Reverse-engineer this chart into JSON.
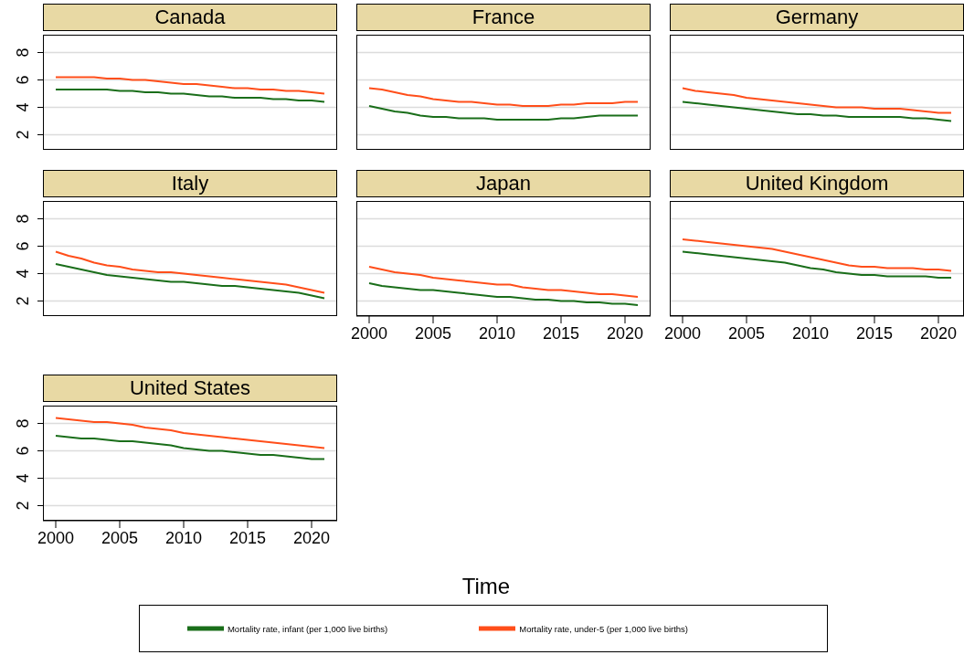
{
  "chart_data": [
    {
      "type": "line",
      "title": "Canada",
      "tick_labels": "y",
      "grid": "y",
      "x": [
        2000,
        2001,
        2002,
        2003,
        2004,
        2005,
        2006,
        2007,
        2008,
        2009,
        2010,
        2011,
        2012,
        2013,
        2014,
        2015,
        2016,
        2017,
        2018,
        2019,
        2020,
        2021
      ],
      "xlim": [
        1999,
        2022
      ],
      "xticks": [
        2000,
        2005,
        2010,
        2015,
        2020
      ],
      "ylim": [
        0.9,
        9.3
      ],
      "yticks": [
        2,
        4,
        6,
        8
      ],
      "series": [
        {
          "color": "#1a6e1a",
          "values": [
            5.3,
            5.3,
            5.3,
            5.3,
            5.3,
            5.2,
            5.2,
            5.1,
            5.1,
            5.0,
            5.0,
            4.9,
            4.8,
            4.8,
            4.7,
            4.7,
            4.7,
            4.6,
            4.6,
            4.5,
            4.5,
            4.4
          ]
        },
        {
          "color": "#ff4e1a",
          "values": [
            6.2,
            6.2,
            6.2,
            6.2,
            6.1,
            6.1,
            6.0,
            6.0,
            5.9,
            5.8,
            5.7,
            5.7,
            5.6,
            5.5,
            5.4,
            5.4,
            5.3,
            5.3,
            5.2,
            5.2,
            5.1,
            5.0
          ]
        }
      ]
    },
    {
      "type": "line",
      "title": "France",
      "tick_labels": false,
      "grid": "y",
      "x": [
        2000,
        2001,
        2002,
        2003,
        2004,
        2005,
        2006,
        2007,
        2008,
        2009,
        2010,
        2011,
        2012,
        2013,
        2014,
        2015,
        2016,
        2017,
        2018,
        2019,
        2020,
        2021
      ],
      "xlim": [
        1999,
        2022
      ],
      "xticks": [
        2000,
        2005,
        2010,
        2015,
        2020
      ],
      "ylim": [
        0.9,
        9.3
      ],
      "yticks": [
        2,
        4,
        6,
        8
      ],
      "series": [
        {
          "color": "#1a6e1a",
          "values": [
            4.1,
            3.9,
            3.7,
            3.6,
            3.4,
            3.3,
            3.3,
            3.2,
            3.2,
            3.2,
            3.1,
            3.1,
            3.1,
            3.1,
            3.1,
            3.2,
            3.2,
            3.3,
            3.4,
            3.4,
            3.4,
            3.4
          ]
        },
        {
          "color": "#ff4e1a",
          "values": [
            5.4,
            5.3,
            5.1,
            4.9,
            4.8,
            4.6,
            4.5,
            4.4,
            4.4,
            4.3,
            4.2,
            4.2,
            4.1,
            4.1,
            4.1,
            4.2,
            4.2,
            4.3,
            4.3,
            4.3,
            4.4,
            4.4
          ]
        }
      ]
    },
    {
      "type": "line",
      "title": "Germany",
      "tick_labels": false,
      "grid": "y",
      "x": [
        2000,
        2001,
        2002,
        2003,
        2004,
        2005,
        2006,
        2007,
        2008,
        2009,
        2010,
        2011,
        2012,
        2013,
        2014,
        2015,
        2016,
        2017,
        2018,
        2019,
        2020,
        2021
      ],
      "xlim": [
        1999,
        2022
      ],
      "xticks": [
        2000,
        2005,
        2010,
        2015,
        2020
      ],
      "ylim": [
        0.9,
        9.3
      ],
      "yticks": [
        2,
        4,
        6,
        8
      ],
      "series": [
        {
          "color": "#1a6e1a",
          "values": [
            4.4,
            4.3,
            4.2,
            4.1,
            4.0,
            3.9,
            3.8,
            3.7,
            3.6,
            3.5,
            3.5,
            3.4,
            3.4,
            3.3,
            3.3,
            3.3,
            3.3,
            3.3,
            3.2,
            3.2,
            3.1,
            3.0
          ]
        },
        {
          "color": "#ff4e1a",
          "values": [
            5.4,
            5.2,
            5.1,
            5.0,
            4.9,
            4.7,
            4.6,
            4.5,
            4.4,
            4.3,
            4.2,
            4.1,
            4.0,
            4.0,
            4.0,
            3.9,
            3.9,
            3.9,
            3.8,
            3.7,
            3.6,
            3.6
          ]
        }
      ]
    },
    {
      "type": "line",
      "title": "Italy",
      "tick_labels": "y",
      "grid": "y",
      "x": [
        2000,
        2001,
        2002,
        2003,
        2004,
        2005,
        2006,
        2007,
        2008,
        2009,
        2010,
        2011,
        2012,
        2013,
        2014,
        2015,
        2016,
        2017,
        2018,
        2019,
        2020,
        2021
      ],
      "xlim": [
        1999,
        2022
      ],
      "xticks": [
        2000,
        2005,
        2010,
        2015,
        2020
      ],
      "ylim": [
        0.9,
        9.3
      ],
      "yticks": [
        2,
        4,
        6,
        8
      ],
      "series": [
        {
          "color": "#1a6e1a",
          "values": [
            4.7,
            4.5,
            4.3,
            4.1,
            3.9,
            3.8,
            3.7,
            3.6,
            3.5,
            3.4,
            3.4,
            3.3,
            3.2,
            3.1,
            3.1,
            3.0,
            2.9,
            2.8,
            2.7,
            2.6,
            2.4,
            2.2
          ]
        },
        {
          "color": "#ff4e1a",
          "values": [
            5.6,
            5.3,
            5.1,
            4.8,
            4.6,
            4.5,
            4.3,
            4.2,
            4.1,
            4.1,
            4.0,
            3.9,
            3.8,
            3.7,
            3.6,
            3.5,
            3.4,
            3.3,
            3.2,
            3.0,
            2.8,
            2.6
          ]
        }
      ]
    },
    {
      "type": "line",
      "title": "Japan",
      "tick_labels": "x",
      "grid": "y",
      "x": [
        2000,
        2001,
        2002,
        2003,
        2004,
        2005,
        2006,
        2007,
        2008,
        2009,
        2010,
        2011,
        2012,
        2013,
        2014,
        2015,
        2016,
        2017,
        2018,
        2019,
        2020,
        2021
      ],
      "xlim": [
        1999,
        2022
      ],
      "xticks": [
        2000,
        2005,
        2010,
        2015,
        2020
      ],
      "ylim": [
        0.9,
        9.3
      ],
      "yticks": [
        2,
        4,
        6,
        8
      ],
      "series": [
        {
          "color": "#1a6e1a",
          "values": [
            3.3,
            3.1,
            3.0,
            2.9,
            2.8,
            2.8,
            2.7,
            2.6,
            2.5,
            2.4,
            2.3,
            2.3,
            2.2,
            2.1,
            2.1,
            2.0,
            2.0,
            1.9,
            1.9,
            1.8,
            1.8,
            1.7
          ]
        },
        {
          "color": "#ff4e1a",
          "values": [
            4.5,
            4.3,
            4.1,
            4.0,
            3.9,
            3.7,
            3.6,
            3.5,
            3.4,
            3.3,
            3.2,
            3.2,
            3.0,
            2.9,
            2.8,
            2.8,
            2.7,
            2.6,
            2.5,
            2.5,
            2.4,
            2.3
          ]
        }
      ]
    },
    {
      "type": "line",
      "title": "United Kingdom",
      "tick_labels": "x",
      "grid": "y",
      "x": [
        2000,
        2001,
        2002,
        2003,
        2004,
        2005,
        2006,
        2007,
        2008,
        2009,
        2010,
        2011,
        2012,
        2013,
        2014,
        2015,
        2016,
        2017,
        2018,
        2019,
        2020,
        2021
      ],
      "xlim": [
        1999,
        2022
      ],
      "xticks": [
        2000,
        2005,
        2010,
        2015,
        2020
      ],
      "ylim": [
        0.9,
        9.3
      ],
      "yticks": [
        2,
        4,
        6,
        8
      ],
      "series": [
        {
          "color": "#1a6e1a",
          "values": [
            5.6,
            5.5,
            5.4,
            5.3,
            5.2,
            5.1,
            5.0,
            4.9,
            4.8,
            4.6,
            4.4,
            4.3,
            4.1,
            4.0,
            3.9,
            3.9,
            3.8,
            3.8,
            3.8,
            3.8,
            3.7,
            3.7
          ]
        },
        {
          "color": "#ff4e1a",
          "values": [
            6.5,
            6.4,
            6.3,
            6.2,
            6.1,
            6.0,
            5.9,
            5.8,
            5.6,
            5.4,
            5.2,
            5.0,
            4.8,
            4.6,
            4.5,
            4.5,
            4.4,
            4.4,
            4.4,
            4.3,
            4.3,
            4.2
          ]
        }
      ]
    },
    {
      "type": "line",
      "title": "United States",
      "xlabel": "Time",
      "legend": "bottom",
      "grid": "y",
      "x": [
        2000,
        2001,
        2002,
        2003,
        2004,
        2005,
        2006,
        2007,
        2008,
        2009,
        2010,
        2011,
        2012,
        2013,
        2014,
        2015,
        2016,
        2017,
        2018,
        2019,
        2020,
        2021
      ],
      "xlim": [
        1999,
        2022
      ],
      "xticks": [
        2000,
        2005,
        2010,
        2015,
        2020
      ],
      "ylim": [
        0.9,
        9.3
      ],
      "yticks": [
        2,
        4,
        6,
        8
      ],
      "series": [
        {
          "name": "Mortality rate, infant (per 1,000 live births)",
          "color": "#1a6e1a",
          "values": [
            7.1,
            7.0,
            6.9,
            6.9,
            6.8,
            6.7,
            6.7,
            6.6,
            6.5,
            6.4,
            6.2,
            6.1,
            6.0,
            6.0,
            5.9,
            5.8,
            5.7,
            5.7,
            5.6,
            5.5,
            5.4,
            5.4
          ]
        },
        {
          "name": "Mortality rate, under-5 (per 1,000 live births)",
          "color": "#ff4e1a",
          "values": [
            8.4,
            8.3,
            8.2,
            8.1,
            8.1,
            8.0,
            7.9,
            7.7,
            7.6,
            7.5,
            7.3,
            7.2,
            7.1,
            7.0,
            6.9,
            6.8,
            6.7,
            6.6,
            6.5,
            6.4,
            6.3,
            6.2
          ]
        }
      ]
    }
  ]
}
